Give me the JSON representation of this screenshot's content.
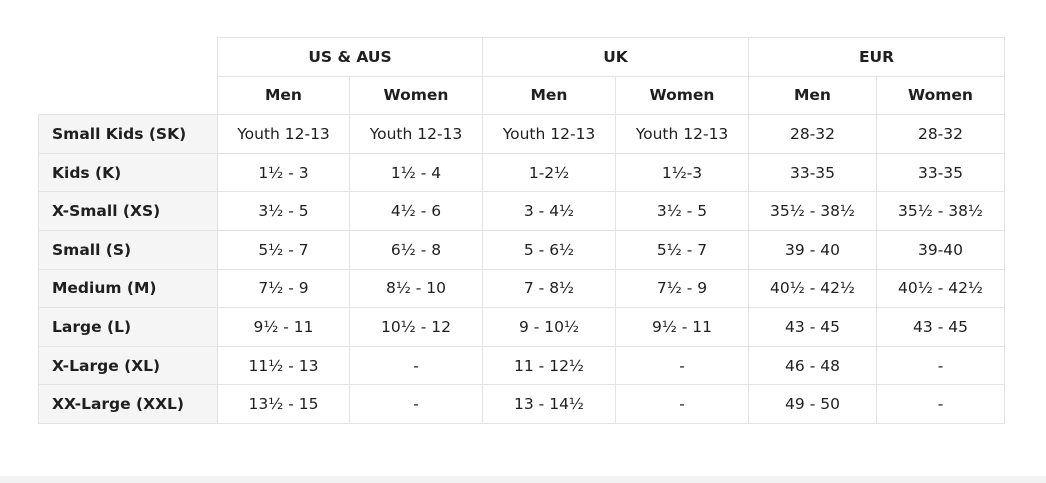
{
  "table": {
    "groups": [
      "US & AUS",
      "UK",
      "EUR"
    ],
    "subheaders": [
      "Men",
      "Women",
      "Men",
      "Women",
      "Men",
      "Women"
    ],
    "rows": [
      {
        "label": "Small Kids (SK)",
        "cells": [
          "Youth 12-13",
          "Youth 12-13",
          "Youth 12-13",
          "Youth 12-13",
          "28-32",
          "28-32"
        ]
      },
      {
        "label": "Kids (K)",
        "cells": [
          "1½ - 3",
          "1½ - 4",
          "1-2½",
          "1½-3",
          "33-35",
          "33-35"
        ]
      },
      {
        "label": "X-Small (XS)",
        "cells": [
          "3½ - 5",
          "4½ - 6",
          "3 - 4½",
          "3½ - 5",
          "35½ - 38½",
          "35½ - 38½"
        ]
      },
      {
        "label": "Small (S)",
        "cells": [
          "5½ - 7",
          "6½ - 8",
          "5 - 6½",
          "5½ - 7",
          "39 - 40",
          "39-40"
        ]
      },
      {
        "label": "Medium (M)",
        "cells": [
          "7½ - 9",
          "8½ - 10",
          "7 - 8½",
          "7½ - 9",
          "40½ - 42½",
          "40½ - 42½"
        ]
      },
      {
        "label": "Large (L)",
        "cells": [
          "9½ - 11",
          "10½ - 12",
          "9 - 10½",
          "9½ - 11",
          "43 - 45",
          "43 - 45"
        ]
      },
      {
        "label": "X-Large (XL)",
        "cells": [
          "11½ - 13",
          "-",
          "11 - 12½",
          "-",
          "46 - 48",
          "-"
        ]
      },
      {
        "label": "XX-Large (XXL)",
        "cells": [
          "13½ - 15",
          "-",
          "13 - 14½",
          "-",
          "49 - 50",
          "-"
        ]
      }
    ]
  },
  "colors": {
    "border": "#e3e3e3",
    "row_label_bg": "#f5f5f5",
    "text": "#1f1f1f"
  }
}
